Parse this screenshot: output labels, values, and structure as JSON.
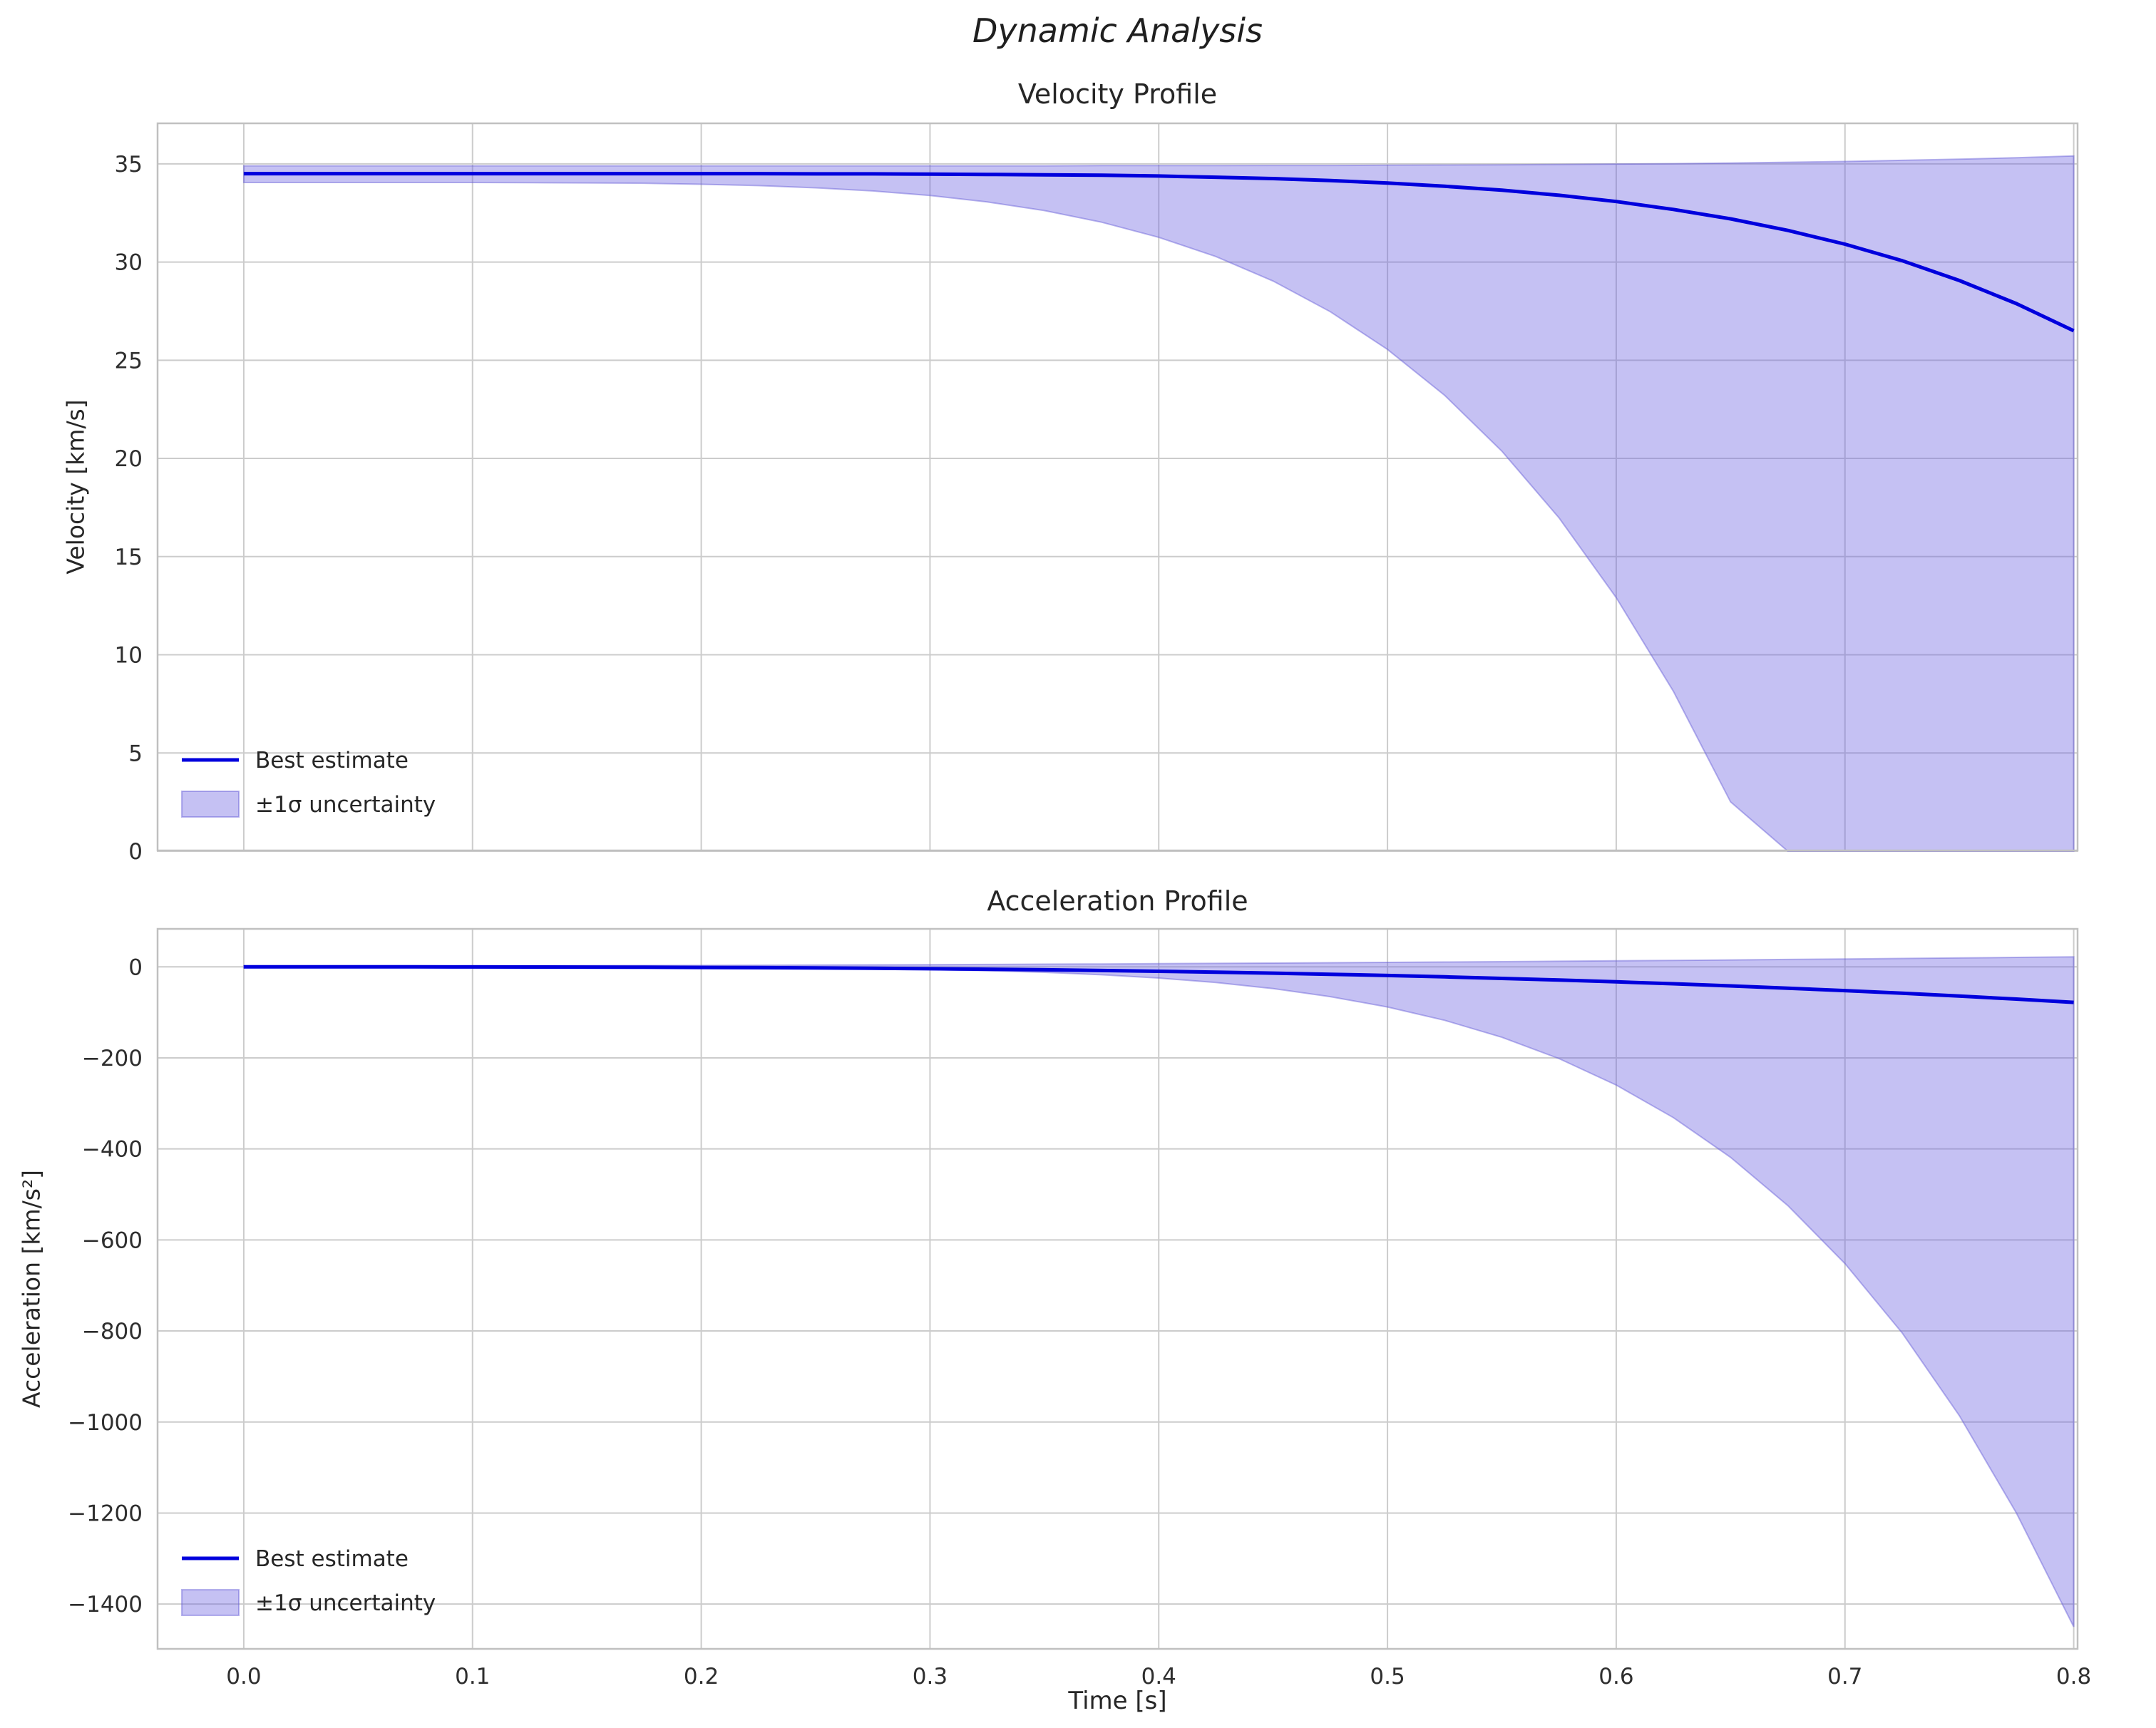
{
  "figure": {
    "title": "Dynamic Analysis"
  },
  "chart_data": [
    {
      "type": "line",
      "title": "Velocity Profile",
      "ylabel": "Velocity [km/s]",
      "xlabel": "",
      "xlim": [
        -0.038,
        0.802
      ],
      "ylim": [
        0,
        37.1
      ],
      "grid": true,
      "xticks": [
        0.0,
        0.1,
        0.2,
        0.3,
        0.4,
        0.5,
        0.6,
        0.7,
        0.8
      ],
      "xtick_labels": [],
      "yticks": [
        0,
        5,
        10,
        15,
        20,
        25,
        30,
        35
      ],
      "ytick_labels": [
        "0",
        "5",
        "10",
        "15",
        "20",
        "25",
        "30",
        "35"
      ],
      "legend": {
        "position": "lower left",
        "entries": [
          {
            "type": "line",
            "label": "Best estimate"
          },
          {
            "type": "patch",
            "label": "±1σ uncertainty"
          }
        ]
      },
      "colors": {
        "line": "#0000dd",
        "band_fill": "rgba(110,100,225,0.4)",
        "band_edge": "rgba(100,90,215,0.45)",
        "grid": "#cccccc",
        "spine": "#c0c0c0"
      },
      "series": {
        "x": [
          0,
          0.025,
          0.05,
          0.075,
          0.1,
          0.125,
          0.15,
          0.175,
          0.2,
          0.225,
          0.25,
          0.275,
          0.3,
          0.325,
          0.35,
          0.375,
          0.4,
          0.425,
          0.45,
          0.475,
          0.5,
          0.525,
          0.55,
          0.575,
          0.6,
          0.625,
          0.65,
          0.675,
          0.7,
          0.725,
          0.75,
          0.775,
          0.8
        ],
        "best": [
          34.5,
          34.5,
          34.5,
          34.5,
          34.5,
          34.5,
          34.5,
          34.5,
          34.5,
          34.5,
          34.49,
          34.49,
          34.48,
          34.46,
          34.44,
          34.42,
          34.38,
          34.32,
          34.25,
          34.15,
          34.02,
          33.86,
          33.66,
          33.4,
          33.08,
          32.68,
          32.2,
          31.61,
          30.91,
          30.07,
          29.06,
          27.88,
          26.5
        ],
        "upper": [
          34.9,
          34.9,
          34.9,
          34.9,
          34.9,
          34.9,
          34.9,
          34.9,
          34.9,
          34.9,
          34.9,
          34.9,
          34.9,
          34.9,
          34.9,
          34.91,
          34.91,
          34.91,
          34.92,
          34.92,
          34.93,
          34.94,
          34.95,
          34.97,
          34.99,
          35.01,
          35.04,
          35.08,
          35.12,
          35.18,
          35.24,
          35.31,
          35.4
        ],
        "lower": [
          34.05,
          34.05,
          34.05,
          34.05,
          34.05,
          34.04,
          34.03,
          34.01,
          33.96,
          33.89,
          33.78,
          33.62,
          33.39,
          33.06,
          32.62,
          32.03,
          31.26,
          30.28,
          29.03,
          27.47,
          25.55,
          23.21,
          20.37,
          16.97,
          12.91,
          8.14,
          2.51,
          -4.04,
          -11.65,
          -20.44,
          -30.52,
          -41.98,
          -55.11
        ]
      }
    },
    {
      "type": "line",
      "title": "Acceleration Profile",
      "ylabel": "Acceleration [km/s²]",
      "xlabel": "Time [s]",
      "xlim": [
        -0.038,
        0.802
      ],
      "ylim": [
        -1500,
        85
      ],
      "grid": true,
      "xticks": [
        0.0,
        0.1,
        0.2,
        0.3,
        0.4,
        0.5,
        0.6,
        0.7,
        0.8
      ],
      "xtick_labels": [
        "0.0",
        "0.1",
        "0.2",
        "0.3",
        "0.4",
        "0.5",
        "0.6",
        "0.7",
        "0.8"
      ],
      "yticks": [
        0,
        -200,
        -400,
        -600,
        -800,
        -1000,
        -1200,
        -1400
      ],
      "ytick_labels": [
        "0",
        "−200",
        "−400",
        "−600",
        "−800",
        "−1000",
        "−1200",
        "−1400"
      ],
      "legend": {
        "position": "lower left",
        "entries": [
          {
            "type": "line",
            "label": "Best estimate"
          },
          {
            "type": "patch",
            "label": "±1σ uncertainty"
          }
        ]
      },
      "colors": {
        "line": "#0000dd",
        "band_fill": "rgba(110,100,225,0.4)",
        "band_edge": "rgba(100,90,215,0.45)",
        "grid": "#cccccc",
        "spine": "#c0c0c0"
      },
      "series": {
        "x": [
          0,
          0.025,
          0.05,
          0.075,
          0.1,
          0.125,
          0.15,
          0.175,
          0.2,
          0.225,
          0.25,
          0.275,
          0.3,
          0.325,
          0.35,
          0.375,
          0.4,
          0.425,
          0.45,
          0.475,
          0.5,
          0.525,
          0.55,
          0.575,
          0.6,
          0.625,
          0.65,
          0.675,
          0.7,
          0.725,
          0.75,
          0.775,
          0.8
        ],
        "best": [
          0,
          0,
          -0.02,
          -0.06,
          -0.15,
          -0.3,
          -0.51,
          -0.82,
          -1.22,
          -1.74,
          -2.38,
          -3.17,
          -4.11,
          -5.23,
          -6.53,
          -8.03,
          -9.75,
          -11.69,
          -13.88,
          -16.33,
          -19.04,
          -22.04,
          -25.35,
          -28.96,
          -32.91,
          -37.19,
          -41.84,
          -46.85,
          -52.25,
          -58.05,
          -64.27,
          -70.91,
          -78
        ],
        "upper": [
          2,
          2.02,
          2.08,
          2.18,
          2.31,
          2.49,
          2.7,
          2.96,
          3.25,
          3.58,
          3.95,
          4.36,
          4.81,
          5.3,
          5.83,
          6.39,
          7,
          7.64,
          8.33,
          9.05,
          9.81,
          10.61,
          11.45,
          12.33,
          13.25,
          14.21,
          15.2,
          16.24,
          17.31,
          18.43,
          19.58,
          20.77,
          22
        ],
        "lower": [
          -2,
          -2,
          -2,
          -2,
          -2.01,
          -2.02,
          -2.06,
          -2.16,
          -2.35,
          -2.72,
          -3.35,
          -4.39,
          -6.03,
          -8.5,
          -12.15,
          -17.38,
          -24.63,
          -34.54,
          -47.87,
          -65.47,
          -88.3,
          -117.55,
          -154.76,
          -201.68,
          -259.74,
          -331.27,
          -418.59,
          -524.44,
          -651.86,
          -804.48,
          -986.06,
          -1200.65,
          -1450
        ]
      }
    }
  ]
}
